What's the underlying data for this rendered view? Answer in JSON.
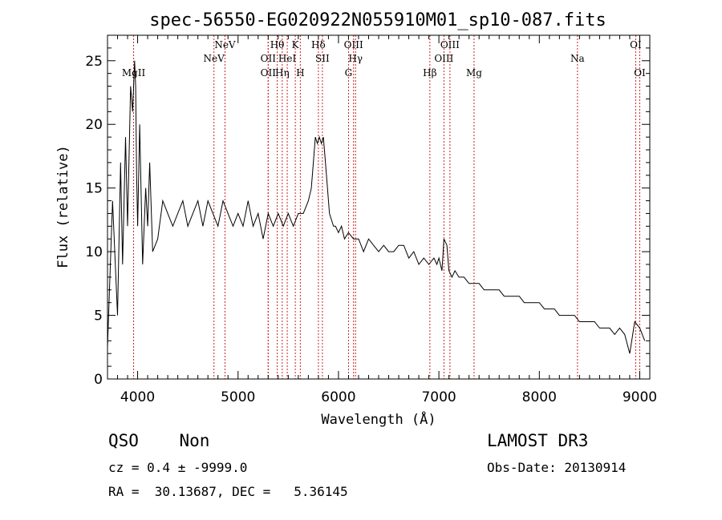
{
  "chart_data": {
    "type": "line",
    "title": "spec-56550-EG020922N055910M01_sp10-087.fits",
    "xlabel": "Wavelength (Å)",
    "ylabel": "Flux (relative)",
    "xlim": [
      3700,
      9100
    ],
    "ylim": [
      0,
      27
    ],
    "xticks": [
      4000,
      5000,
      6000,
      7000,
      8000,
      9000
    ],
    "yticks": [
      0,
      5,
      10,
      15,
      20,
      25
    ],
    "grid": false,
    "series": [
      {
        "x": [
          3700,
          3750,
          3800,
          3830,
          3850,
          3880,
          3900,
          3930,
          3950,
          3970,
          3980,
          3990,
          4000,
          4020,
          4050,
          4080,
          4100,
          4120,
          4150,
          4200,
          4250,
          4300,
          4350,
          4400,
          4450,
          4500,
          4550,
          4600,
          4650,
          4700,
          4750,
          4800,
          4850,
          4900,
          4950,
          5000,
          5050,
          5100,
          5150,
          5200,
          5250,
          5300,
          5350,
          5400,
          5450,
          5500,
          5550,
          5600,
          5650,
          5700,
          5730,
          5750,
          5770,
          5790,
          5810,
          5830,
          5850,
          5870,
          5890,
          5910,
          5930,
          5950,
          5970,
          6000,
          6030,
          6060,
          6100,
          6150,
          6200,
          6250,
          6300,
          6350,
          6400,
          6450,
          6500,
          6550,
          6600,
          6650,
          6700,
          6750,
          6800,
          6850,
          6900,
          6950,
          6980,
          7000,
          7030,
          7050,
          7080,
          7100,
          7130,
          7160,
          7200,
          7250,
          7300,
          7350,
          7400,
          7450,
          7500,
          7550,
          7600,
          7650,
          7700,
          7750,
          7800,
          7850,
          7900,
          7950,
          8000,
          8050,
          8100,
          8150,
          8200,
          8250,
          8300,
          8350,
          8400,
          8450,
          8500,
          8550,
          8600,
          8650,
          8700,
          8750,
          8800,
          8850,
          8900,
          8950,
          9000,
          9050
        ],
        "y": [
          2.5,
          14,
          5,
          17,
          9,
          19,
          12,
          23,
          21,
          25,
          23,
          16,
          12,
          20,
          9,
          15,
          12,
          17,
          10,
          11,
          14,
          13,
          12,
          13,
          14,
          12,
          13,
          14,
          12,
          14,
          13,
          12,
          14,
          13,
          12,
          13,
          12,
          14,
          12,
          13,
          11,
          13,
          12,
          13,
          12,
          13,
          12,
          13,
          13,
          14,
          15,
          17,
          19,
          18.5,
          19,
          18.5,
          19,
          17,
          15,
          13,
          12.5,
          12,
          12,
          11.5,
          12,
          11,
          11.5,
          11,
          11,
          10,
          11,
          10.5,
          10,
          10.5,
          10,
          10,
          10.5,
          10.5,
          9.5,
          10,
          9,
          9.5,
          9,
          9.5,
          9,
          9.5,
          8.5,
          11,
          10.5,
          8.5,
          8,
          8.5,
          8,
          8,
          7.5,
          7.5,
          7.5,
          7,
          7,
          7,
          7,
          6.5,
          6.5,
          6.5,
          6.5,
          6,
          6,
          6,
          6,
          5.5,
          5.5,
          5.5,
          5,
          5,
          5,
          5,
          4.5,
          4.5,
          4.5,
          4.5,
          4,
          4,
          4,
          3.5,
          4,
          3.5,
          2,
          4.5,
          4,
          3
        ]
      }
    ],
    "emission_lines": [
      {
        "name": "MgII",
        "wavelength": 3960,
        "row": 2
      },
      {
        "name": "NeV",
        "wavelength": 4760,
        "row": 1
      },
      {
        "name": "NeV",
        "wavelength": 4870,
        "row": 0
      },
      {
        "name": "OII",
        "wavelength": 5300,
        "row": 1
      },
      {
        "name": "OII",
        "wavelength": 5300,
        "row": 2
      },
      {
        "name": "Hθ",
        "wavelength": 5390,
        "row": 0
      },
      {
        "name": "Hη",
        "wavelength": 5440,
        "row": 2
      },
      {
        "name": "HeI",
        "wavelength": 5490,
        "row": 1
      },
      {
        "name": "K",
        "wavelength": 5570,
        "row": 0
      },
      {
        "name": "H",
        "wavelength": 5620,
        "row": 2
      },
      {
        "name": "Hδ",
        "wavelength": 5800,
        "row": 0
      },
      {
        "name": "SII",
        "wavelength": 5840,
        "row": 1
      },
      {
        "name": "OIII",
        "wavelength": 6150,
        "row": 0
      },
      {
        "name": "Hγ",
        "wavelength": 6170,
        "row": 1
      },
      {
        "name": "G",
        "wavelength": 6100,
        "row": 2
      },
      {
        "name": "Hβ",
        "wavelength": 6910,
        "row": 2
      },
      {
        "name": "OIII",
        "wavelength": 7050,
        "row": 1
      },
      {
        "name": "OIII",
        "wavelength": 7110,
        "row": 0
      },
      {
        "name": "Mg",
        "wavelength": 7350,
        "row": 2
      },
      {
        "name": "Na",
        "wavelength": 8380,
        "row": 1
      },
      {
        "name": "OI",
        "wavelength": 8960,
        "row": 0
      },
      {
        "name": "OI",
        "wavelength": 9000,
        "row": 2
      }
    ],
    "line_color": "#000000",
    "marker_color": "#cc2222"
  },
  "info": {
    "class": "QSO    Non",
    "survey": "LAMOST DR3",
    "cz": "cz = 0.4 ± -9999.0",
    "obs_date": "Obs-Date: 20130914",
    "coords": "RA =  30.13687, DEC =   5.36145"
  }
}
